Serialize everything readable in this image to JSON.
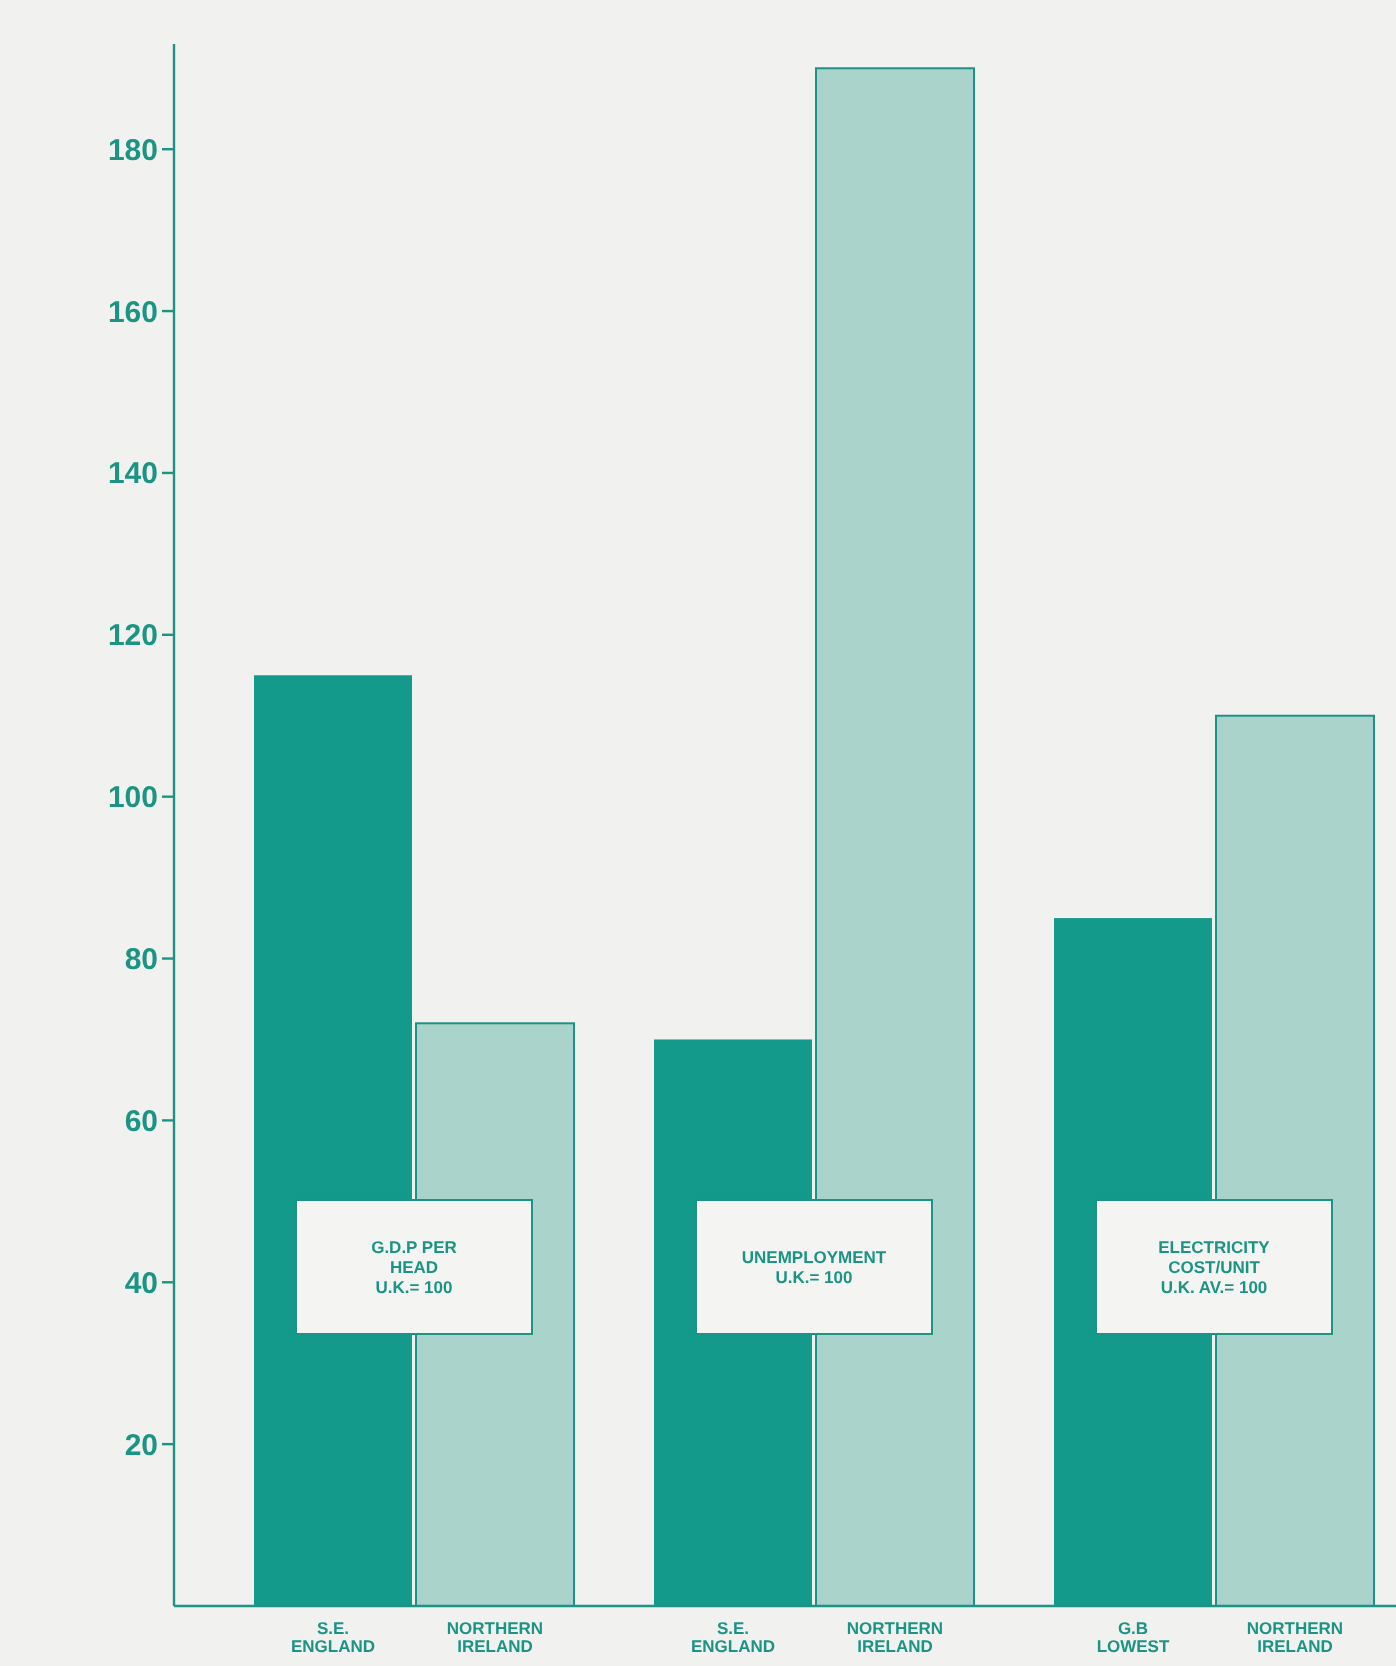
{
  "chart_data": {
    "type": "bar",
    "categories": [
      "S.E. ENGLAND",
      "NORTHERN IRELAND",
      "S.E. ENGLAND",
      "NORTHERN IRELAND",
      "G.B LOWEST",
      "NORTHERN IRELAND"
    ],
    "values": [
      115,
      72,
      70,
      190,
      85,
      110
    ],
    "colors": [
      "#149a8a",
      "#a9d3cb",
      "#149a8a",
      "#a9d3cb",
      "#149a8a",
      "#a9d3cb"
    ],
    "ylim": [
      0,
      193
    ],
    "yticks": [
      20,
      40,
      60,
      80,
      100,
      120,
      140,
      160,
      180
    ],
    "grid": false,
    "annotations": [
      "G.D.P PER\nHEAD\nU.K.= 100",
      "UNEMPLOYMENT\nU.K.= 100",
      "ELECTRICITY\nCOST/UNIT\nU.K. AV.= 100"
    ]
  }
}
